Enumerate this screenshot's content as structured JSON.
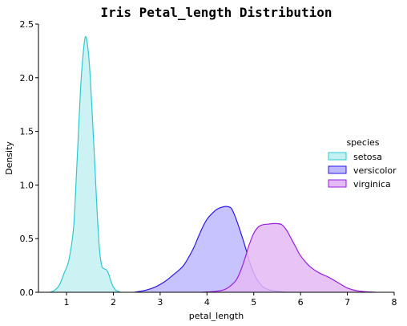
{
  "chart_data": {
    "type": "area",
    "title": "Iris Petal_length Distribution",
    "xlabel": "petal_length",
    "ylabel": "Density",
    "xlim": [
      0.4,
      8.0
    ],
    "ylim": [
      0,
      2.5
    ],
    "xticks": [
      "1",
      "2",
      "3",
      "4",
      "5",
      "6",
      "7",
      "8"
    ],
    "yticks": [
      "0.0",
      "0.5",
      "1.0",
      "1.5",
      "2.0",
      "2.5"
    ],
    "grid": false,
    "legend_position": "center-right",
    "legend": {
      "title": "species",
      "entries": [
        "setosa",
        "versicolor",
        "virginica"
      ]
    },
    "series": [
      {
        "name": "setosa",
        "stroke": "#2ec9d0",
        "fill": "#c4f0f2",
        "x": [
          0.65,
          0.75,
          0.85,
          0.95,
          1.05,
          1.15,
          1.2,
          1.25,
          1.3,
          1.35,
          1.4,
          1.45,
          1.5,
          1.55,
          1.6,
          1.65,
          1.7,
          1.75,
          1.8,
          1.85,
          1.9,
          1.95,
          2.0,
          2.05,
          2.1,
          2.15
        ],
        "y": [
          0.0,
          0.02,
          0.07,
          0.18,
          0.3,
          0.6,
          1.0,
          1.45,
          1.9,
          2.2,
          2.38,
          2.3,
          2.05,
          1.65,
          1.22,
          0.78,
          0.42,
          0.25,
          0.22,
          0.21,
          0.17,
          0.1,
          0.05,
          0.02,
          0.01,
          0.0
        ]
      },
      {
        "name": "versicolor",
        "stroke": "#2d17e6",
        "fill": "#bdb8ff",
        "x": [
          2.45,
          2.7,
          2.9,
          3.1,
          3.3,
          3.5,
          3.7,
          3.8,
          3.9,
          4.0,
          4.1,
          4.2,
          4.3,
          4.4,
          4.5,
          4.55,
          4.65,
          4.8,
          4.9,
          5.0,
          5.1,
          5.2,
          5.35,
          5.5,
          5.7
        ],
        "y": [
          0.0,
          0.02,
          0.05,
          0.1,
          0.17,
          0.25,
          0.4,
          0.5,
          0.6,
          0.68,
          0.73,
          0.77,
          0.79,
          0.8,
          0.79,
          0.76,
          0.65,
          0.45,
          0.3,
          0.18,
          0.1,
          0.05,
          0.02,
          0.01,
          0.0
        ]
      },
      {
        "name": "virginica",
        "stroke": "#9b1ee0",
        "fill": "#e4baf5",
        "x": [
          3.9,
          4.2,
          4.4,
          4.6,
          4.7,
          4.8,
          4.9,
          5.0,
          5.1,
          5.2,
          5.3,
          5.4,
          5.5,
          5.6,
          5.7,
          5.8,
          5.9,
          6.0,
          6.2,
          6.4,
          6.6,
          6.8,
          7.0,
          7.2,
          7.4,
          7.6
        ],
        "y": [
          0.0,
          0.01,
          0.03,
          0.1,
          0.18,
          0.3,
          0.44,
          0.55,
          0.61,
          0.63,
          0.635,
          0.64,
          0.64,
          0.63,
          0.58,
          0.5,
          0.42,
          0.34,
          0.24,
          0.18,
          0.14,
          0.09,
          0.04,
          0.015,
          0.005,
          0.0
        ]
      }
    ]
  }
}
